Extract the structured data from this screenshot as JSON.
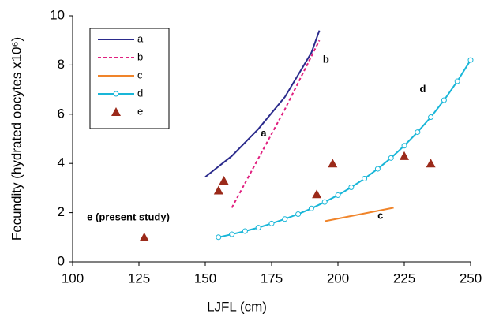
{
  "chart_data": {
    "type": "line",
    "xlabel": "LJFL (cm)",
    "ylabel": "Fecundity (hydrated oocytes x10⁶)",
    "xlim": [
      100,
      250
    ],
    "xticks": [
      100,
      125,
      150,
      175,
      200,
      225,
      250
    ],
    "ylim": [
      0,
      10
    ],
    "yticks": [
      0,
      2,
      4,
      6,
      8,
      10
    ],
    "grid": false,
    "legend": "upper left",
    "series": [
      {
        "name": "a",
        "color": "#2b2b8c",
        "style": "solid",
        "marker": "none",
        "x": [
          150,
          160,
          170,
          180,
          190,
          193
        ],
        "values": [
          3.45,
          4.3,
          5.4,
          6.7,
          8.5,
          9.4
        ]
      },
      {
        "name": "b",
        "color": "#e0207f",
        "style": "dashed",
        "marker": "none",
        "x": [
          160,
          170,
          180,
          193
        ],
        "values": [
          2.2,
          4.2,
          6.2,
          9.0
        ]
      },
      {
        "name": "c",
        "color": "#f0842a",
        "style": "solid",
        "marker": "none",
        "x": [
          195,
          221
        ],
        "values": [
          1.65,
          2.2
        ]
      },
      {
        "name": "d",
        "color": "#19b6d8",
        "style": "solid",
        "marker": "circle",
        "x": [
          155,
          160,
          165,
          170,
          175,
          180,
          185,
          190,
          195,
          200,
          205,
          210,
          215,
          220,
          225,
          230,
          235,
          240,
          245,
          250
        ],
        "values": [
          1.0,
          1.12,
          1.25,
          1.39,
          1.56,
          1.74,
          1.94,
          2.17,
          2.43,
          2.71,
          3.03,
          3.38,
          3.78,
          4.22,
          4.72,
          5.27,
          5.88,
          6.57,
          7.34,
          8.2
        ]
      },
      {
        "name": "e",
        "color": "#9b2a1a",
        "style": "none",
        "marker": "triangle",
        "x": [
          127,
          155,
          157,
          192,
          198,
          225,
          235
        ],
        "values": [
          1.0,
          2.9,
          3.3,
          2.75,
          4.0,
          4.3,
          4.0
        ]
      }
    ],
    "annotations": [
      {
        "text": "a",
        "x": 172,
        "y": 5.2
      },
      {
        "text": "b",
        "x": 195.5,
        "y": 8.2
      },
      {
        "text": "c",
        "x": 216,
        "y": 1.85
      },
      {
        "text": "d",
        "x": 232,
        "y": 7.0
      },
      {
        "text": "e (present study)",
        "x": 121,
        "y": 1.8
      }
    ]
  }
}
